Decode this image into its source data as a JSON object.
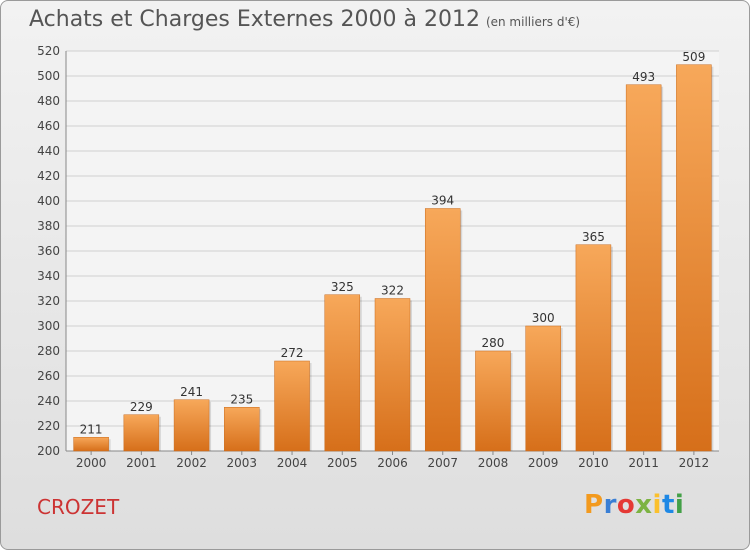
{
  "title": "Achats et Charges Externes 2000 à 2012",
  "subtitle": "(en milliers d'€)",
  "city": "CROZET",
  "logo": "Proxiti",
  "colors": {
    "bar_top": "#f7a85a",
    "bar_bottom": "#d66f1a",
    "grid": "#cfcfcf",
    "city": "#cc3333",
    "logo": [
      "#f39a1e",
      "#3a7fd5",
      "#e53935",
      "#7cb342",
      "#fbc02d",
      "#1e88e5",
      "#43a047"
    ]
  },
  "chart_data": {
    "type": "bar",
    "categories": [
      "2000",
      "2001",
      "2002",
      "2003",
      "2004",
      "2005",
      "2006",
      "2007",
      "2008",
      "2009",
      "2010",
      "2011",
      "2012"
    ],
    "values": [
      211,
      229,
      241,
      235,
      272,
      325,
      322,
      394,
      280,
      300,
      365,
      493,
      509
    ],
    "ylim": [
      200,
      520
    ],
    "yticks": [
      200,
      220,
      240,
      260,
      280,
      300,
      320,
      340,
      360,
      380,
      400,
      420,
      440,
      460,
      480,
      500,
      520
    ],
    "grid": true,
    "data_labels": true
  }
}
